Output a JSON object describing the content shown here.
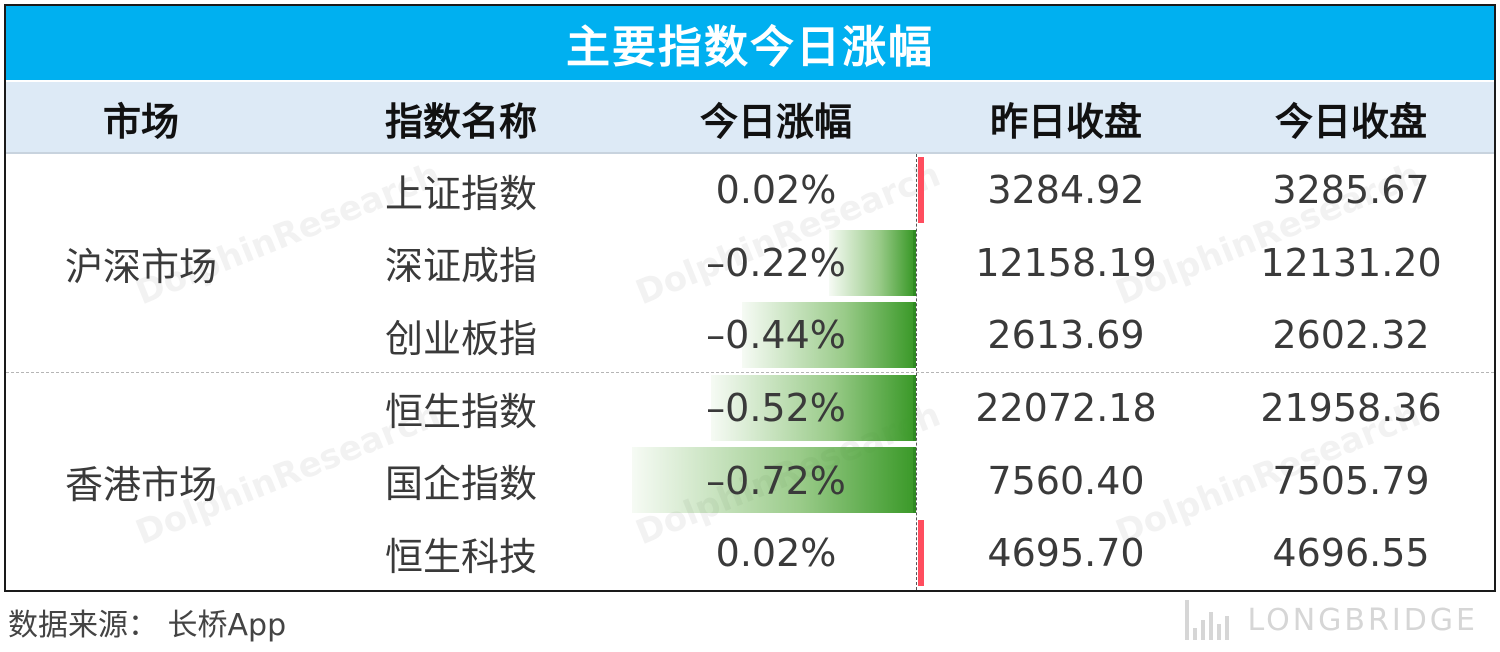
{
  "title": "主要指数今日涨幅",
  "headers": [
    "市场",
    "指数名称",
    "今日涨幅",
    "昨日收盘",
    "今日收盘"
  ],
  "groups": [
    {
      "market": "沪深市场",
      "rows": [
        0,
        1,
        2
      ]
    },
    {
      "market": "香港市场",
      "rows": [
        3,
        4,
        5
      ]
    }
  ],
  "rows": [
    {
      "name": "上证指数",
      "change": "0.02%",
      "change_value": 0.02,
      "prev_close": "3284.92",
      "close": "3285.67"
    },
    {
      "name": "深证成指",
      "change": "–0.22%",
      "change_value": -0.22,
      "prev_close": "12158.19",
      "close": "12131.20"
    },
    {
      "name": "创业板指",
      "change": "–0.44%",
      "change_value": -0.44,
      "prev_close": "2613.69",
      "close": "2602.32"
    },
    {
      "name": "恒生指数",
      "change": "–0.52%",
      "change_value": -0.52,
      "prev_close": "22072.18",
      "close": "21958.36"
    },
    {
      "name": "国企指数",
      "change": "–0.72%",
      "change_value": -0.72,
      "prev_close": "7560.40",
      "close": "7505.79"
    },
    {
      "name": "恒生科技",
      "change": "0.02%",
      "change_value": 0.02,
      "prev_close": "4695.70",
      "close": "4696.55"
    }
  ],
  "colors": {
    "title_bg": "#00b0f0",
    "header_bg": "#ddeaf6",
    "negative_bar": "#3c9a2a",
    "positive_bar": "#ff4d5e"
  },
  "watermark": "LONGBRIDGE DolphinResearch",
  "source": "数据来源：  长桥App",
  "brand": {
    "icon": "longbridge-logo-icon",
    "text": "LONGBRIDGE"
  }
}
